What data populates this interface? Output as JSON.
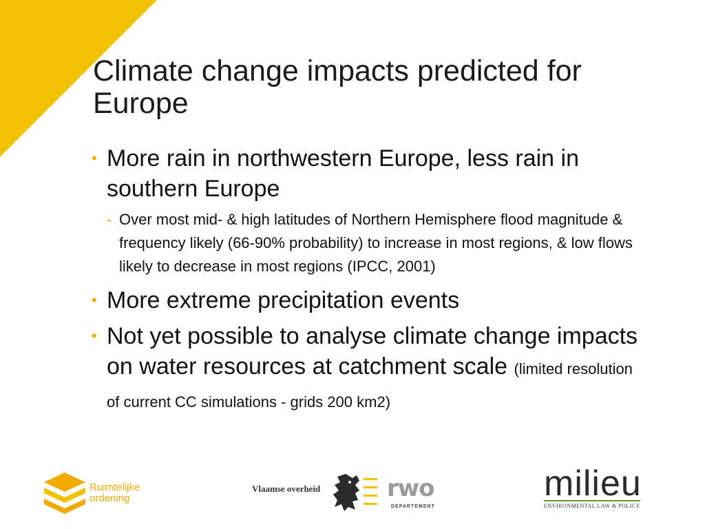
{
  "title": "Climate change impacts predicted for Europe",
  "bullets": {
    "b1": "More rain in northwestern Europe, less rain in southern Europe",
    "b1_sub": "Over most mid- & high latitudes of  Northern Hemisphere flood magnitude & frequency likely (66-90% probability) to increase in most regions, & low flows likely to decrease in most regions (IPCC, 2001)",
    "b2": "More extreme precipitation events",
    "b3_main": "Not yet possible to analyse climate change impacts on water resources at catchment scale",
    "b3_note": "(limited resolution of current CC simulations - grids 200 km2)"
  },
  "logos": {
    "ruimtelijke_line1": "Ruimtelijke",
    "ruimtelijke_line2": "ordening",
    "vlaamse": "Vlaamse overheid",
    "rwo": "rwo",
    "departement": "DEPARTEMENT",
    "milieu": "milieu",
    "milieu_sub": "ENVIRONMENTAL LAW & POLICY"
  },
  "colors": {
    "accent": "#f2c200",
    "bullet": "#f2a900",
    "milieu_green": "#6a9a2a"
  }
}
